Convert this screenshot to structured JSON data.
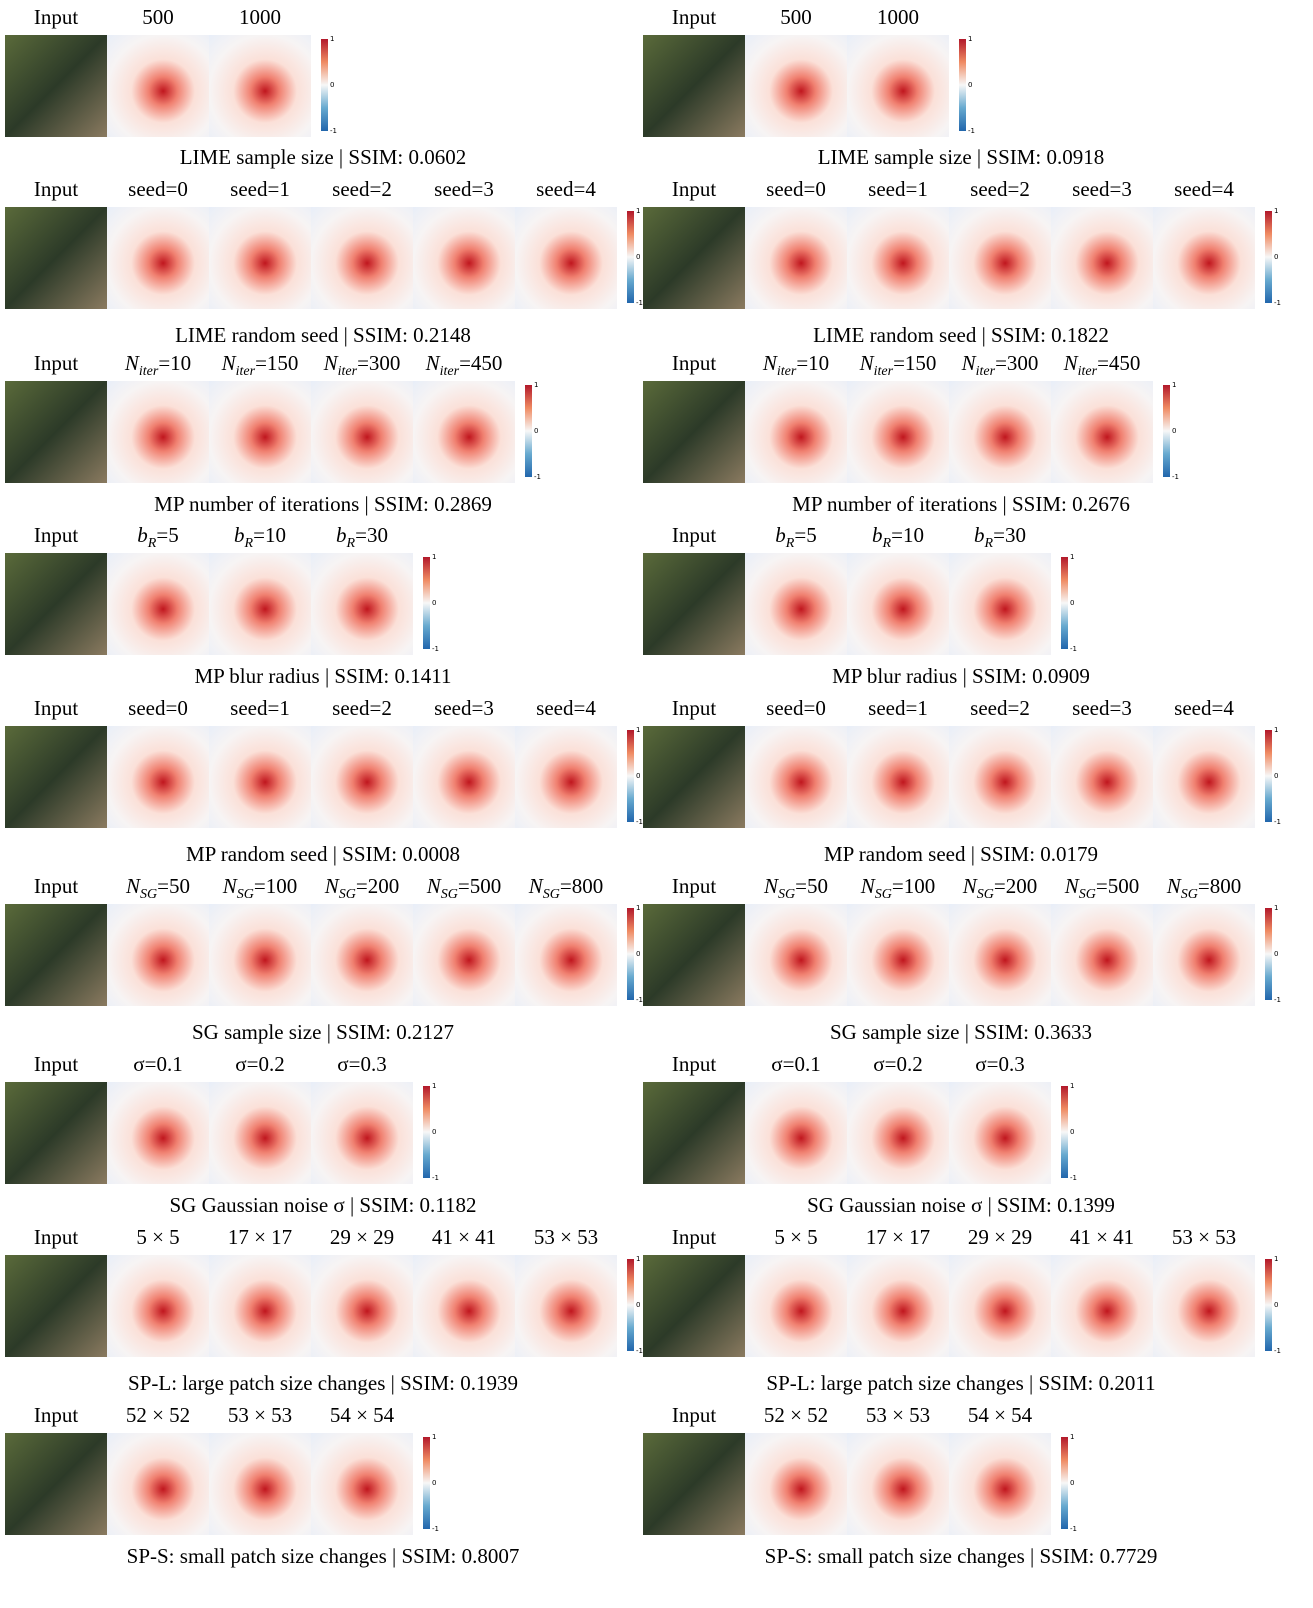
{
  "colorbar_ticks": [
    "1",
    "0",
    "-1"
  ],
  "panels": [
    {
      "headers": [
        "Input",
        "500",
        "1000"
      ],
      "caption": "LIME sample size | SSIM: 0.0602"
    },
    {
      "headers": [
        "Input",
        "500",
        "1000"
      ],
      "caption": "LIME sample size | SSIM: 0.0918"
    },
    {
      "headers": [
        "Input",
        "seed=0",
        "seed=1",
        "seed=2",
        "seed=3",
        "seed=4"
      ],
      "caption": "LIME random seed | SSIM: 0.2148"
    },
    {
      "headers": [
        "Input",
        "seed=0",
        "seed=1",
        "seed=2",
        "seed=3",
        "seed=4"
      ],
      "caption": "LIME random seed | SSIM: 0.1822"
    },
    {
      "headers": [
        "Input",
        {
          "var": "N",
          "sub": "iter",
          "text": "=10"
        },
        {
          "var": "N",
          "sub": "iter",
          "text": "=150"
        },
        {
          "var": "N",
          "sub": "iter",
          "text": "=300"
        },
        {
          "var": "N",
          "sub": "iter",
          "text": "=450"
        }
      ],
      "caption": "MP number of iterations | SSIM: 0.2869"
    },
    {
      "headers": [
        "Input",
        {
          "var": "N",
          "sub": "iter",
          "text": "=10"
        },
        {
          "var": "N",
          "sub": "iter",
          "text": "=150"
        },
        {
          "var": "N",
          "sub": "iter",
          "text": "=300"
        },
        {
          "var": "N",
          "sub": "iter",
          "text": "=450"
        }
      ],
      "caption": "MP number of iterations | SSIM: 0.2676"
    },
    {
      "headers": [
        "Input",
        {
          "var": "b",
          "sub": "R",
          "text": "=5"
        },
        {
          "var": "b",
          "sub": "R",
          "text": "=10"
        },
        {
          "var": "b",
          "sub": "R",
          "text": "=30"
        }
      ],
      "caption": "MP blur radius | SSIM: 0.1411"
    },
    {
      "headers": [
        "Input",
        {
          "var": "b",
          "sub": "R",
          "text": "=5"
        },
        {
          "var": "b",
          "sub": "R",
          "text": "=10"
        },
        {
          "var": "b",
          "sub": "R",
          "text": "=30"
        }
      ],
      "caption": "MP blur radius | SSIM: 0.0909"
    },
    {
      "headers": [
        "Input",
        "seed=0",
        "seed=1",
        "seed=2",
        "seed=3",
        "seed=4"
      ],
      "caption": "MP random seed | SSIM: 0.0008"
    },
    {
      "headers": [
        "Input",
        "seed=0",
        "seed=1",
        "seed=2",
        "seed=3",
        "seed=4"
      ],
      "caption": "MP random seed | SSIM: 0.0179"
    },
    {
      "headers": [
        "Input",
        {
          "var": "N",
          "sub": "SG",
          "text": "=50"
        },
        {
          "var": "N",
          "sub": "SG",
          "text": "=100"
        },
        {
          "var": "N",
          "sub": "SG",
          "text": "=200"
        },
        {
          "var": "N",
          "sub": "SG",
          "text": "=500"
        },
        {
          "var": "N",
          "sub": "SG",
          "text": "=800"
        }
      ],
      "caption": "SG sample size | SSIM: 0.2127"
    },
    {
      "headers": [
        "Input",
        {
          "var": "N",
          "sub": "SG",
          "text": "=50"
        },
        {
          "var": "N",
          "sub": "SG",
          "text": "=100"
        },
        {
          "var": "N",
          "sub": "SG",
          "text": "=200"
        },
        {
          "var": "N",
          "sub": "SG",
          "text": "=500"
        },
        {
          "var": "N",
          "sub": "SG",
          "text": "=800"
        }
      ],
      "caption": "SG sample size | SSIM: 0.3633"
    },
    {
      "headers": [
        "Input",
        "σ=0.1",
        "σ=0.2",
        "σ=0.3"
      ],
      "caption": "SG Gaussian noise σ | SSIM: 0.1182"
    },
    {
      "headers": [
        "Input",
        "σ=0.1",
        "σ=0.2",
        "σ=0.3"
      ],
      "caption": "SG Gaussian noise σ | SSIM: 0.1399"
    },
    {
      "headers": [
        "Input",
        "5 × 5",
        "17 × 17",
        "29 × 29",
        "41 × 41",
        "53 × 53"
      ],
      "caption": "SP-L: large patch size changes | SSIM: 0.1939"
    },
    {
      "headers": [
        "Input",
        "5 × 5",
        "17 × 17",
        "29 × 29",
        "41 × 41",
        "53 × 53"
      ],
      "caption": "SP-L: large patch size changes | SSIM: 0.2011"
    },
    {
      "headers": [
        "Input",
        "52 × 52",
        "53 × 53",
        "54 × 54"
      ],
      "caption": "SP-S: small patch size changes | SSIM: 0.8007"
    },
    {
      "headers": [
        "Input",
        "52 × 52",
        "53 × 53",
        "54 × 54"
      ],
      "caption": "SP-S: small patch size changes | SSIM: 0.7729"
    }
  ]
}
